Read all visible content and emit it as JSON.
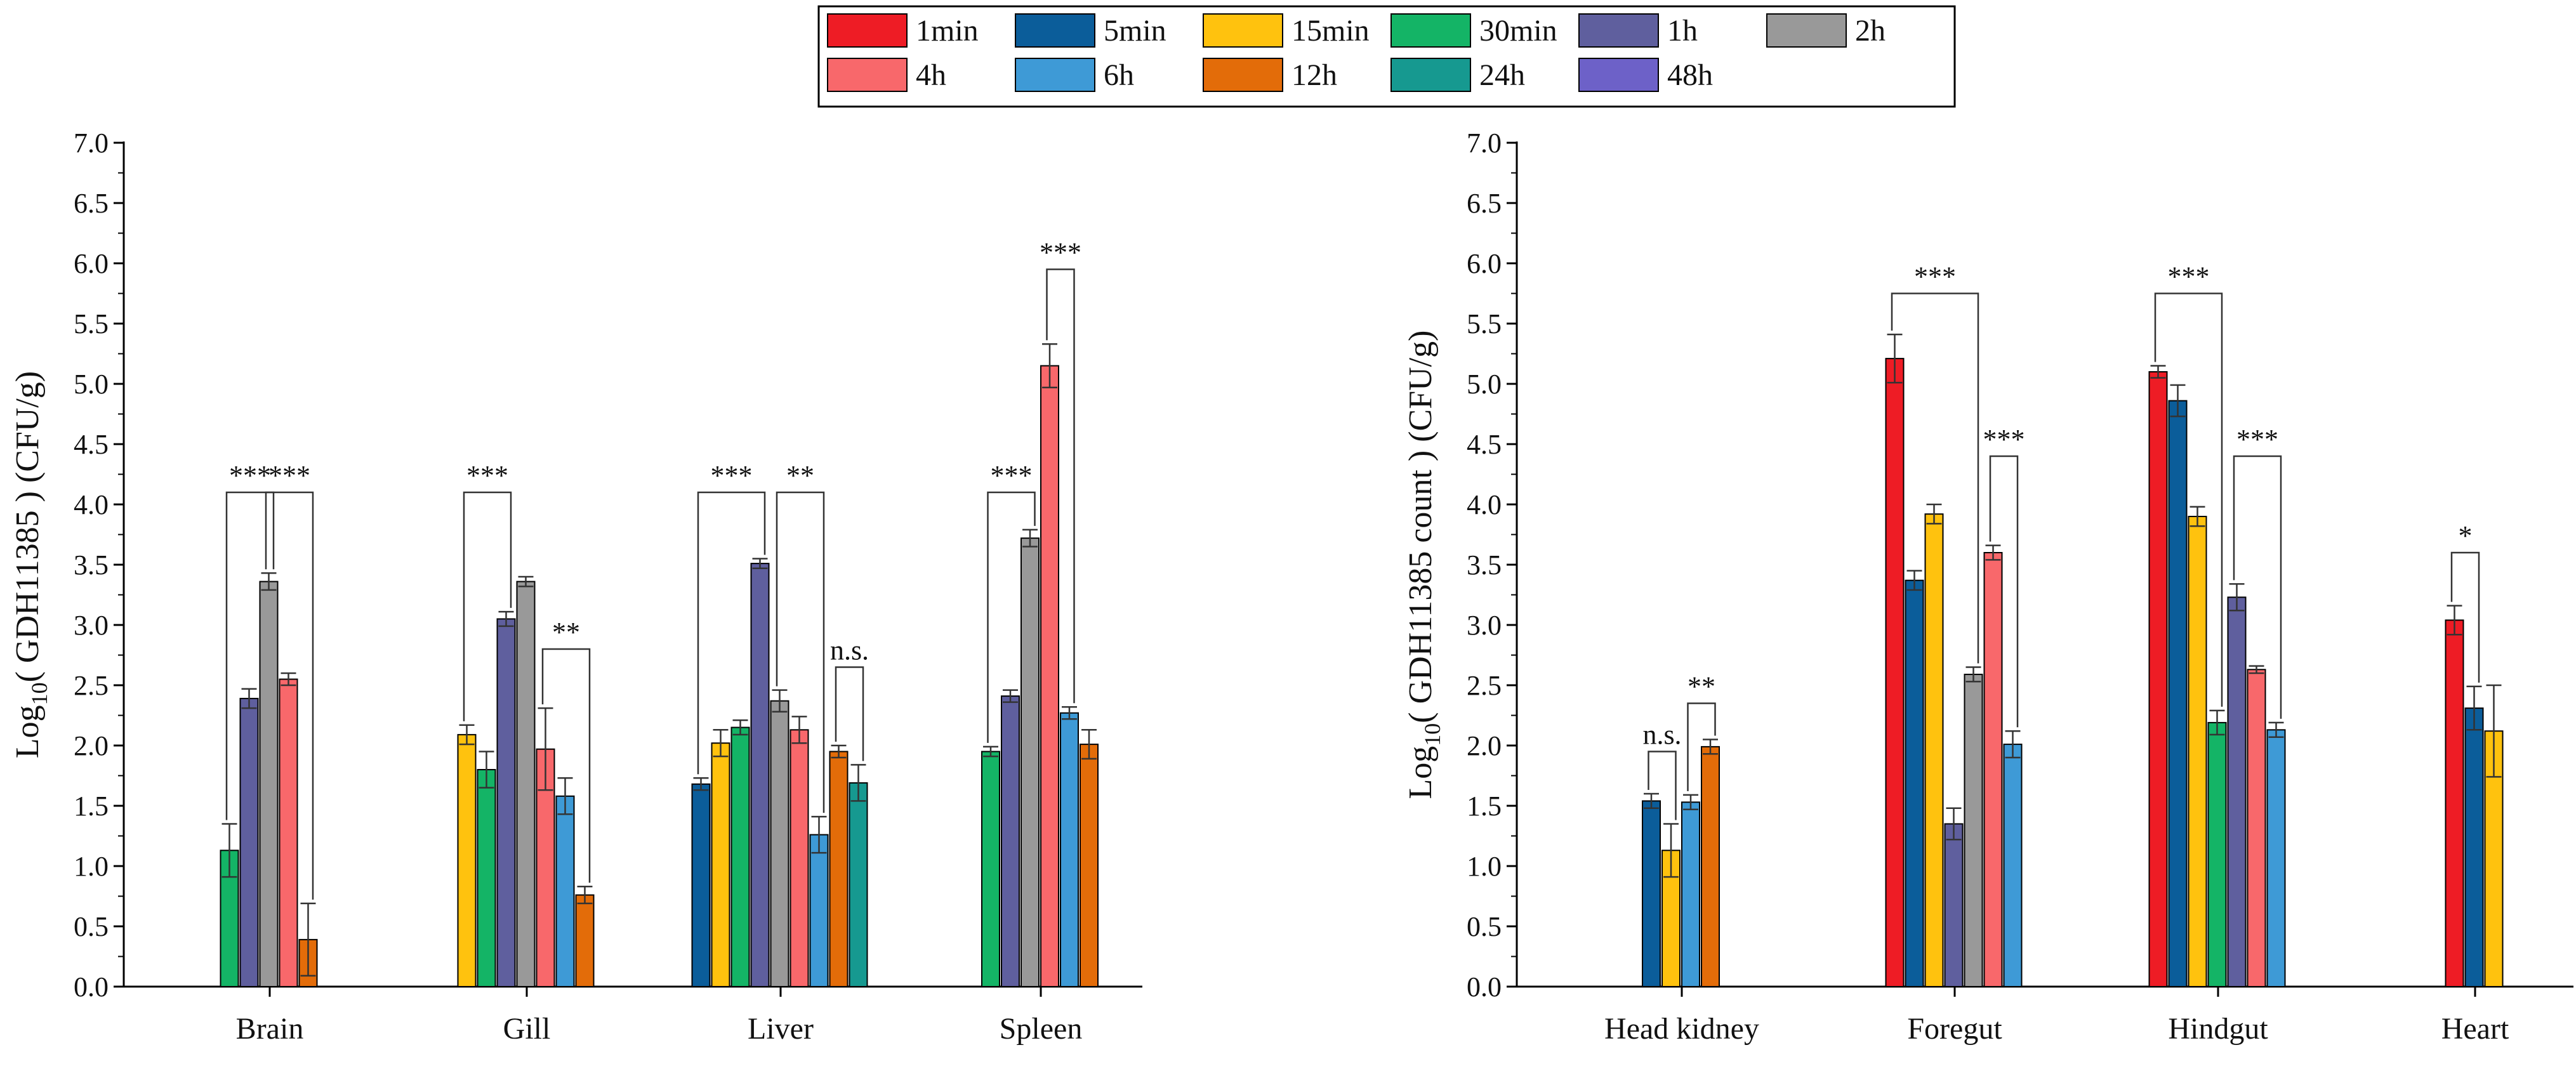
{
  "legend": {
    "entries": [
      {
        "name": "1min",
        "color": "#ee1c25"
      },
      {
        "name": "5min",
        "color": "#0b5d9a"
      },
      {
        "name": "15min",
        "color": "#ffc20e"
      },
      {
        "name": "30min",
        "color": "#14b466"
      },
      {
        "name": "1h",
        "color": "#5f5f9e"
      },
      {
        "name": "2h",
        "color": "#999999"
      },
      {
        "name": "4h",
        "color": "#f8686b"
      },
      {
        "name": "6h",
        "color": "#3e9ad6"
      },
      {
        "name": "12h",
        "color": "#e36c09"
      },
      {
        "name": "24h",
        "color": "#169990"
      },
      {
        "name": "48h",
        "color": "#6d61c8"
      }
    ]
  },
  "chart_data": [
    {
      "type": "bar",
      "title": "",
      "xlabel": "",
      "ylabel_main": "Log",
      "ylabel_sub": "10",
      "ylabel_rest": "( GDH11385 ) (CFU/g)",
      "ylim": [
        0,
        7
      ],
      "yticks": [
        "0.0",
        "0.5",
        "1.0",
        "1.5",
        "2.0",
        "2.5",
        "3.0",
        "3.5",
        "4.0",
        "4.5",
        "5.0",
        "5.5",
        "6.0",
        "6.5",
        "7.0"
      ],
      "categories": [
        "Brain",
        "Gill",
        "Liver",
        "Spleen"
      ],
      "groups": [
        {
          "category": "Brain",
          "bars": [
            {
              "series": "30min",
              "value": 1.13,
              "err": 0.22
            },
            {
              "series": "1h",
              "value": 2.39,
              "err": 0.08
            },
            {
              "series": "2h",
              "value": 3.36,
              "err": 0.07
            },
            {
              "series": "4h",
              "value": 2.55,
              "err": 0.05
            },
            {
              "series": "12h",
              "value": 0.39,
              "err": 0.3
            }
          ],
          "brackets": [
            {
              "from": "30min",
              "to": "2h",
              "label": "***",
              "y": 4.1
            },
            {
              "from": "2h",
              "to": "12h",
              "label": "***",
              "y": 4.1
            }
          ]
        },
        {
          "category": "Gill",
          "bars": [
            {
              "series": "15min",
              "value": 2.09,
              "err": 0.08
            },
            {
              "series": "30min",
              "value": 1.8,
              "err": 0.15
            },
            {
              "series": "1h",
              "value": 3.05,
              "err": 0.06
            },
            {
              "series": "2h",
              "value": 3.36,
              "err": 0.04
            },
            {
              "series": "4h",
              "value": 1.97,
              "err": 0.34
            },
            {
              "series": "6h",
              "value": 1.58,
              "err": 0.15
            },
            {
              "series": "12h",
              "value": 0.76,
              "err": 0.07
            }
          ],
          "brackets": [
            {
              "from": "15min",
              "to": "1h",
              "label": "***",
              "y": 4.1
            },
            {
              "from": "4h",
              "to": "12h",
              "label": "**",
              "y": 2.8
            }
          ]
        },
        {
          "category": "Liver",
          "bars": [
            {
              "series": "5min",
              "value": 1.68,
              "err": 0.05
            },
            {
              "series": "15min",
              "value": 2.02,
              "err": 0.11
            },
            {
              "series": "30min",
              "value": 2.15,
              "err": 0.06
            },
            {
              "series": "1h",
              "value": 3.51,
              "err": 0.04
            },
            {
              "series": "2h",
              "value": 2.37,
              "err": 0.09
            },
            {
              "series": "4h",
              "value": 2.13,
              "err": 0.11
            },
            {
              "series": "6h",
              "value": 1.26,
              "err": 0.15
            },
            {
              "series": "12h",
              "value": 1.95,
              "err": 0.05
            },
            {
              "series": "24h",
              "value": 1.69,
              "err": 0.15
            }
          ],
          "brackets": [
            {
              "from": "5min",
              "to": "1h",
              "label": "***",
              "y": 4.1
            },
            {
              "from": "2h",
              "to": "6h",
              "label": "**",
              "y": 4.1
            },
            {
              "from": "12h",
              "to": "24h",
              "label": "n.s.",
              "y": 2.65
            }
          ]
        },
        {
          "category": "Spleen",
          "bars": [
            {
              "series": "30min",
              "value": 1.95,
              "err": 0.04
            },
            {
              "series": "1h",
              "value": 2.41,
              "err": 0.05
            },
            {
              "series": "2h",
              "value": 3.72,
              "err": 0.07
            },
            {
              "series": "4h",
              "value": 5.15,
              "err": 0.18
            },
            {
              "series": "6h",
              "value": 2.27,
              "err": 0.05
            },
            {
              "series": "12h",
              "value": 2.01,
              "err": 0.12
            }
          ],
          "brackets": [
            {
              "from": "30min",
              "to": "2h",
              "label": "***",
              "y": 4.1
            },
            {
              "from": "4h",
              "to": "6h",
              "label": "***",
              "y": 5.95
            }
          ]
        }
      ]
    },
    {
      "type": "bar",
      "title": "",
      "xlabel": "",
      "ylabel_main": "Log",
      "ylabel_sub": "10",
      "ylabel_rest": "( GDH11385 count ) (CFU/g)",
      "ylim": [
        0,
        7
      ],
      "yticks": [
        "0.0",
        "0.5",
        "1.0",
        "1.5",
        "2.0",
        "2.5",
        "3.0",
        "3.5",
        "4.0",
        "4.5",
        "5.0",
        "5.5",
        "6.0",
        "6.5",
        "7.0"
      ],
      "categories": [
        "Head kidney",
        "Foregut",
        "Hindgut",
        "Heart"
      ],
      "groups": [
        {
          "category": "Head kidney",
          "bars": [
            {
              "series": "5min",
              "value": 1.54,
              "err": 0.06
            },
            {
              "series": "15min",
              "value": 1.13,
              "err": 0.22
            },
            {
              "series": "6h",
              "value": 1.53,
              "err": 0.06
            },
            {
              "series": "12h",
              "value": 1.99,
              "err": 0.06
            }
          ],
          "brackets": [
            {
              "from": "5min",
              "to": "15min",
              "label": "n.s.",
              "y": 1.95
            },
            {
              "from": "6h",
              "to": "12h",
              "label": "**",
              "y": 2.35
            }
          ]
        },
        {
          "category": "Foregut",
          "bars": [
            {
              "series": "1min",
              "value": 5.21,
              "err": 0.2
            },
            {
              "series": "5min",
              "value": 3.37,
              "err": 0.08
            },
            {
              "series": "15min",
              "value": 3.92,
              "err": 0.08
            },
            {
              "series": "1h",
              "value": 1.35,
              "err": 0.13
            },
            {
              "series": "2h",
              "value": 2.59,
              "err": 0.06
            },
            {
              "series": "4h",
              "value": 3.6,
              "err": 0.06
            },
            {
              "series": "6h",
              "value": 2.01,
              "err": 0.11
            }
          ],
          "brackets": [
            {
              "from": "1min",
              "to": "2h",
              "label": "***",
              "y": 5.75
            },
            {
              "from": "4h",
              "to": "6h",
              "label": "***",
              "y": 4.4
            }
          ]
        },
        {
          "category": "Hindgut",
          "bars": [
            {
              "series": "1min",
              "value": 5.1,
              "err": 0.05
            },
            {
              "series": "5min",
              "value": 4.86,
              "err": 0.13
            },
            {
              "series": "15min",
              "value": 3.9,
              "err": 0.08
            },
            {
              "series": "30min",
              "value": 2.19,
              "err": 0.1
            },
            {
              "series": "1h",
              "value": 3.23,
              "err": 0.11
            },
            {
              "series": "4h",
              "value": 2.63,
              "err": 0.03
            },
            {
              "series": "6h",
              "value": 2.13,
              "err": 0.06
            }
          ],
          "brackets": [
            {
              "from": "1min",
              "to": "30min",
              "label": "***",
              "y": 5.75
            },
            {
              "from": "1h",
              "to": "6h",
              "label": "***",
              "y": 4.4
            }
          ]
        },
        {
          "category": "Heart",
          "bars": [
            {
              "series": "1min",
              "value": 3.04,
              "err": 0.12
            },
            {
              "series": "5min",
              "value": 2.31,
              "err": 0.18
            },
            {
              "series": "15min",
              "value": 2.12,
              "err": 0.38
            }
          ],
          "brackets": [
            {
              "from": "1min",
              "to": "5min",
              "label": "*",
              "y": 3.6
            }
          ]
        }
      ]
    }
  ]
}
